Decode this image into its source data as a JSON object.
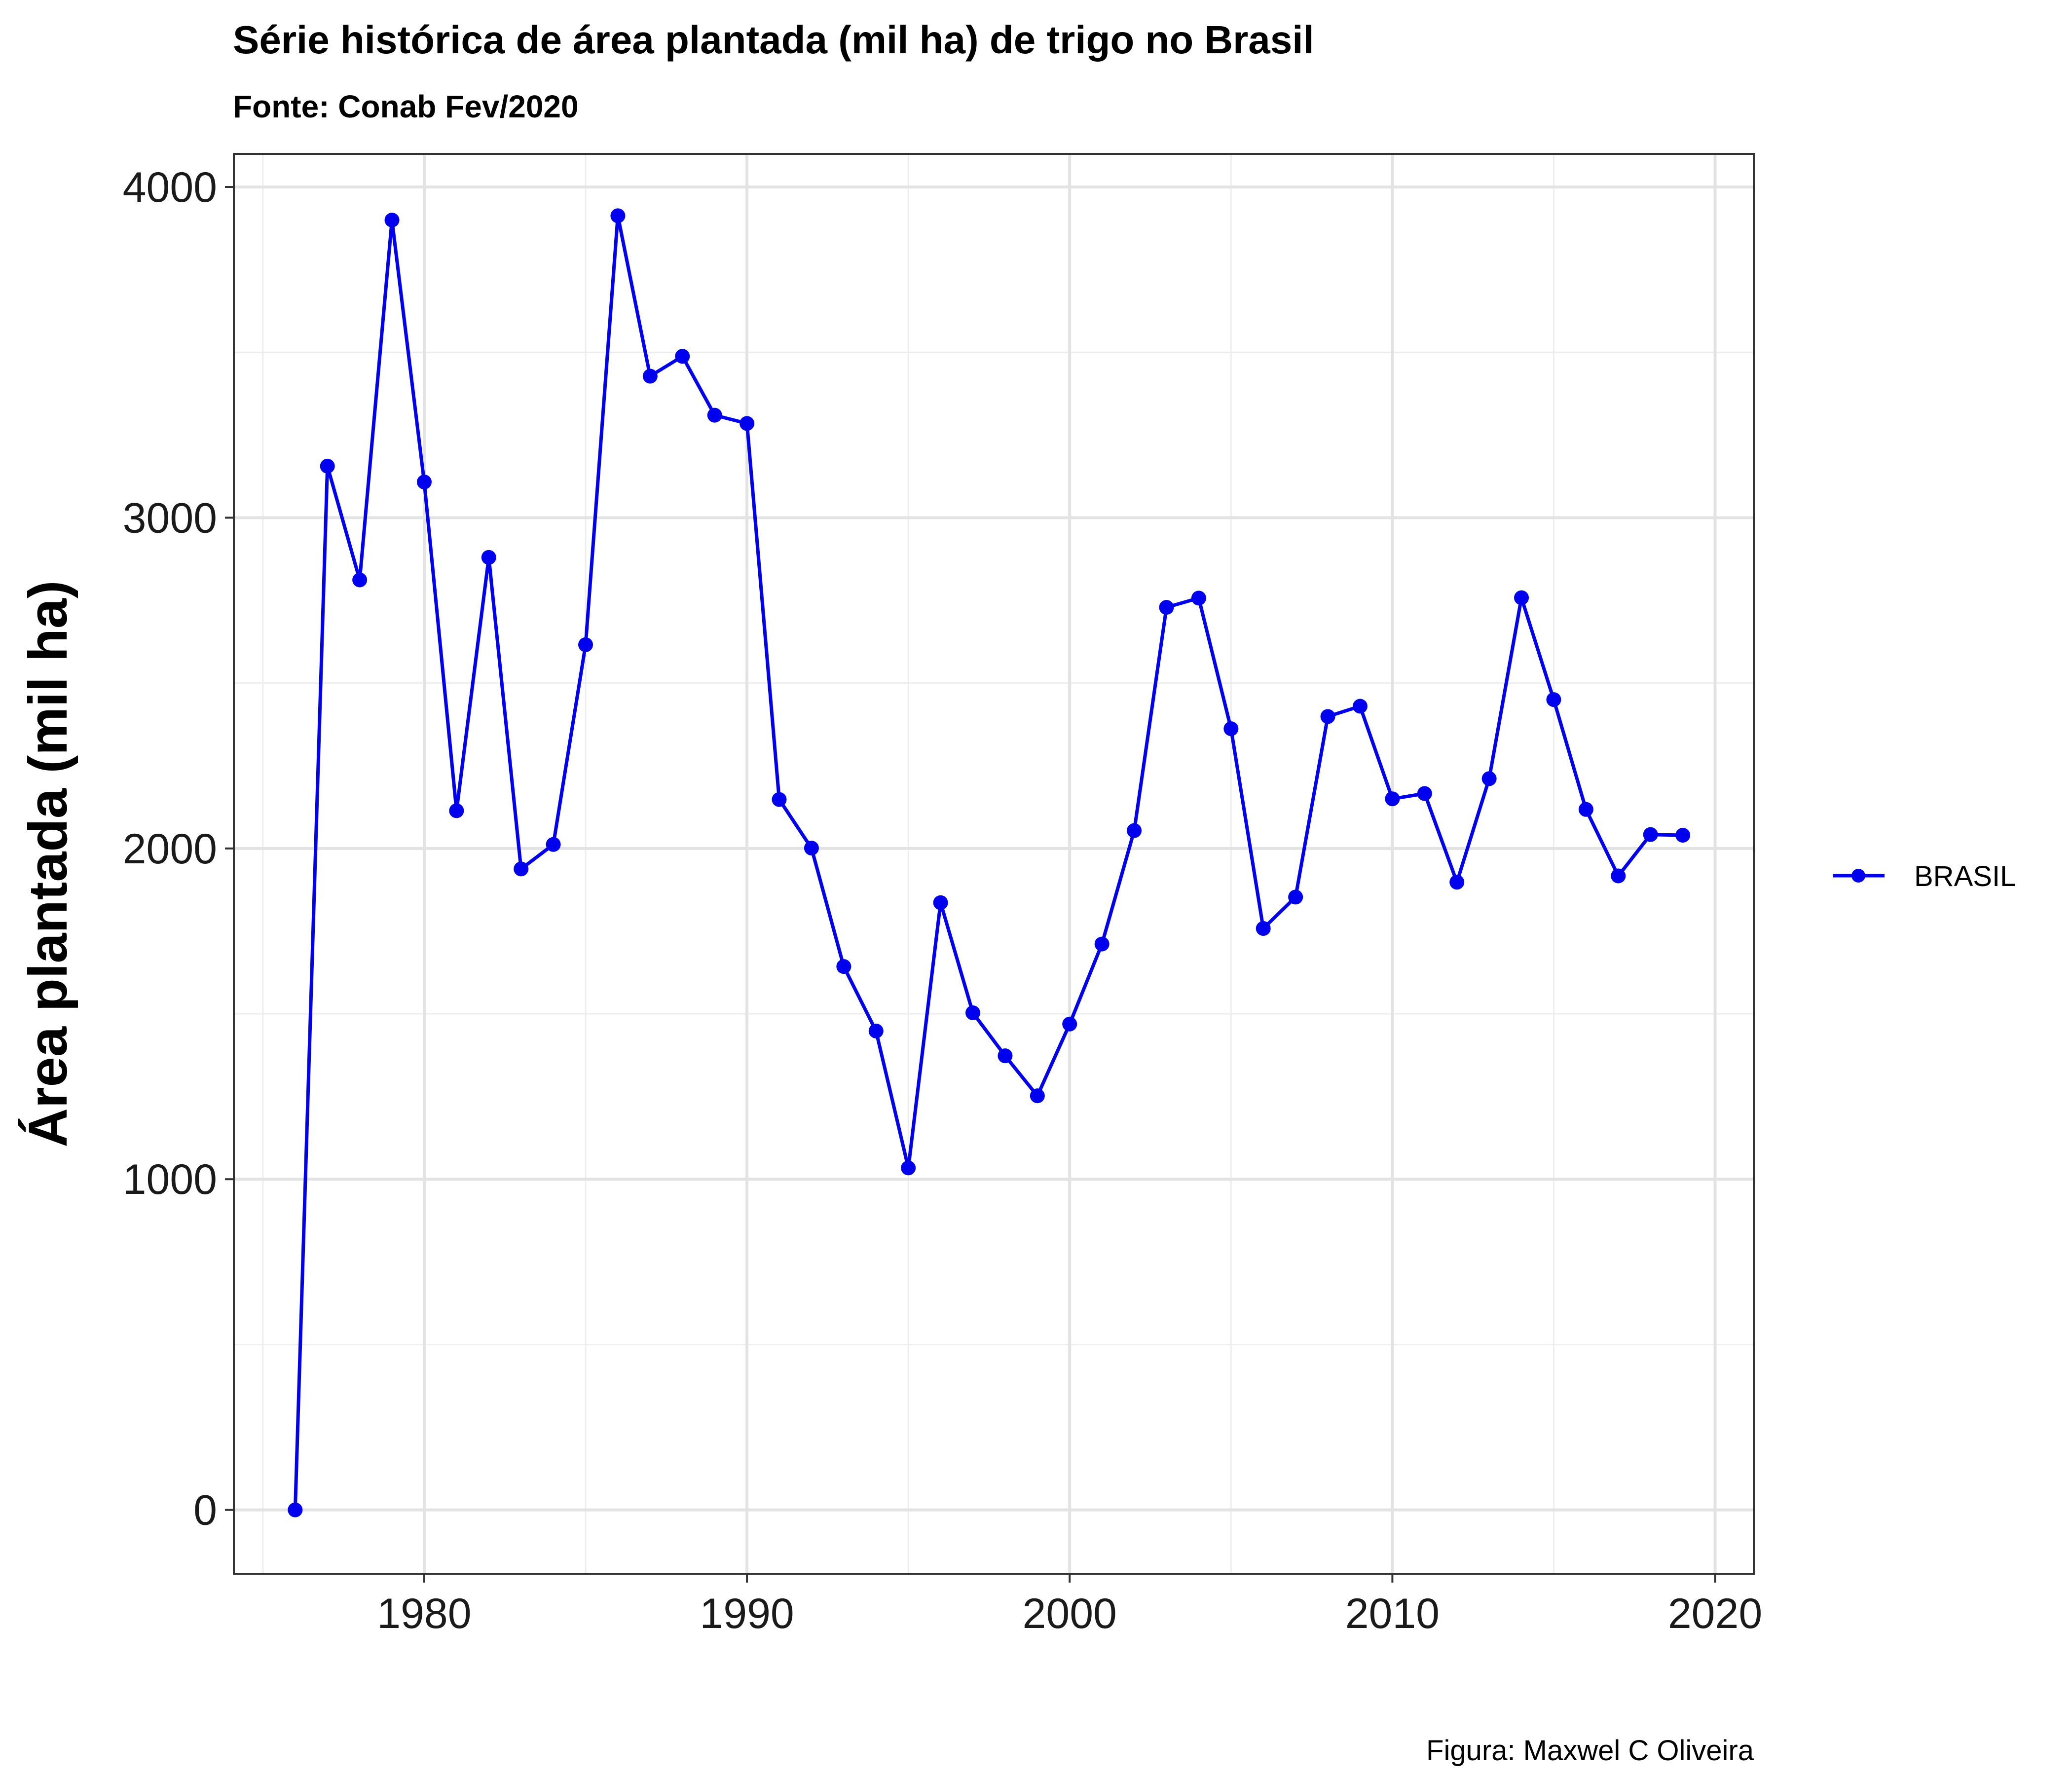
{
  "chart_data": {
    "type": "line",
    "title": "Série histórica de área plantada (mil ha) de trigo no Brasil",
    "subtitle": "Fonte: Conab Fev/2020",
    "ylabel": "Área plantada (mil ha)",
    "xlabel": "",
    "caption": "Figura: Maxwel C Oliveira",
    "xlim": [
      1974.1,
      2021.2
    ],
    "ylim": [
      -193,
      4100
    ],
    "xticks": [
      "1980",
      "1990",
      "2000",
      "2010",
      "2020"
    ],
    "yticks": [
      "0",
      "1000",
      "2000",
      "3000",
      "4000"
    ],
    "grid": true,
    "legend_position": "right",
    "series": [
      {
        "name": "BRASIL",
        "color": "#0000ee",
        "x": [
          1976,
          1977,
          1978,
          1979,
          1980,
          1981,
          1982,
          1983,
          1984,
          1985,
          1986,
          1987,
          1988,
          1989,
          1990,
          1991,
          1992,
          1993,
          1994,
          1995,
          1996,
          1997,
          1998,
          1999,
          2000,
          2001,
          2002,
          2003,
          2004,
          2005,
          2006,
          2007,
          2008,
          2009,
          2010,
          2011,
          2012,
          2013,
          2014,
          2015,
          2016,
          2017,
          2018,
          2019
        ],
        "values": [
          0,
          3156,
          2812,
          3900,
          3108,
          2114,
          2880,
          1938,
          2012,
          2616,
          3913,
          3428,
          3488,
          3310,
          3285,
          2148,
          2001,
          1643,
          1448,
          1034,
          1836,
          1503,
          1373,
          1252,
          1469,
          1711,
          2054,
          2729,
          2757,
          2362,
          1758,
          1853,
          2399,
          2430,
          2150,
          2166,
          1898,
          2211,
          2758,
          2450,
          2118,
          1917,
          2042,
          2040
        ]
      }
    ]
  }
}
